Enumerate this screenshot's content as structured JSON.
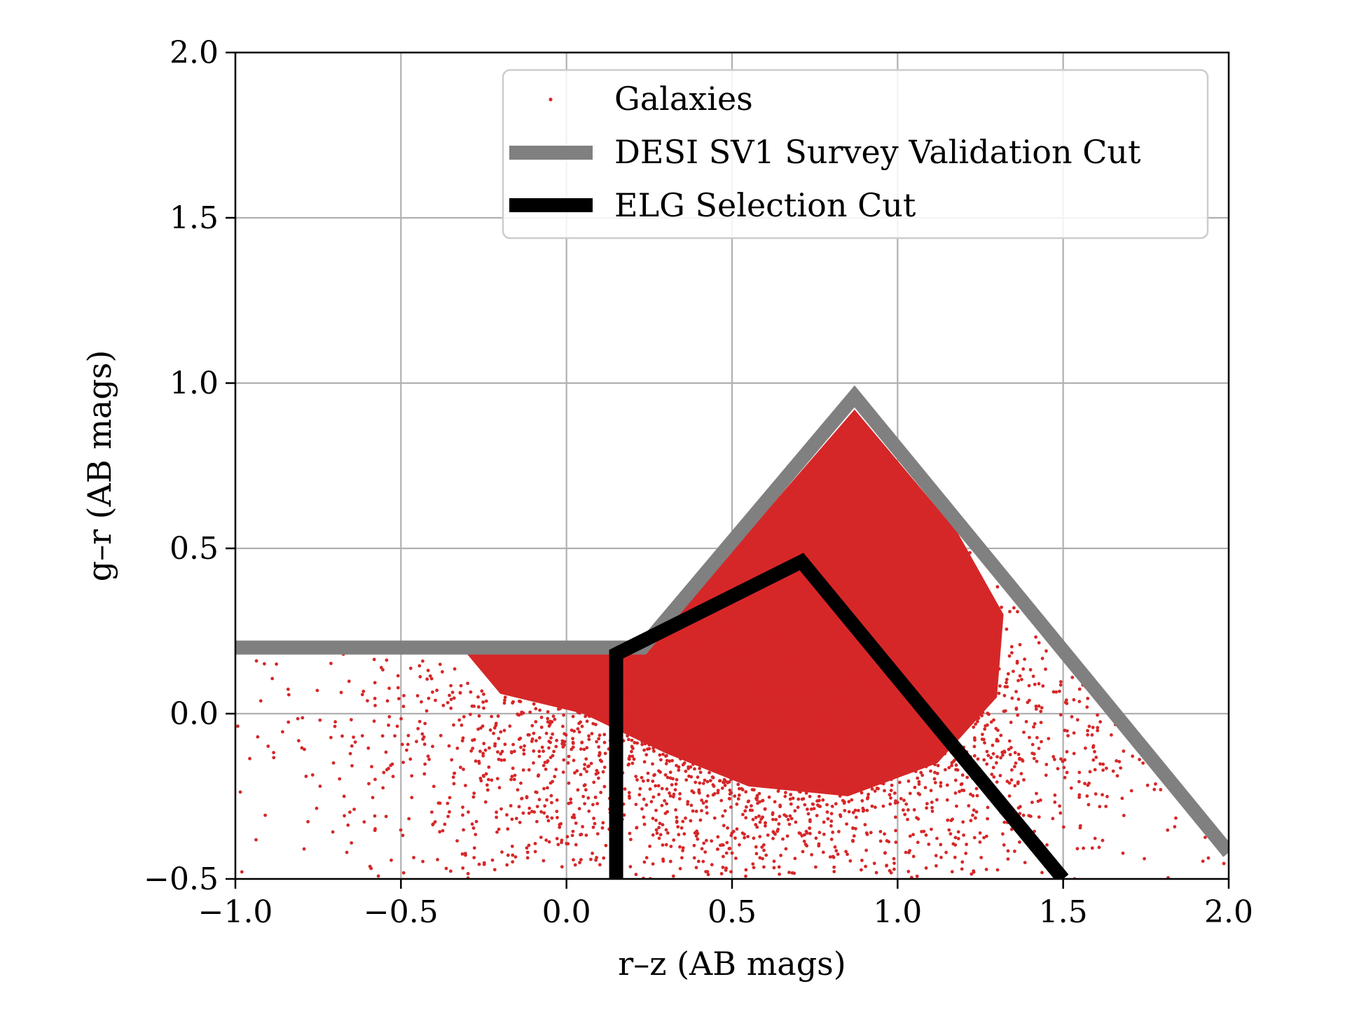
{
  "chart_data": {
    "type": "scatter",
    "title": "",
    "xlabel": "r–z (AB mags)",
    "ylabel": "g–r (AB mags)",
    "xlim": [
      -1.0,
      2.0
    ],
    "ylim": [
      -0.5,
      2.0
    ],
    "grid": true,
    "x_ticks": [
      -1.0,
      -0.5,
      0.0,
      0.5,
      1.0,
      1.5,
      2.0
    ],
    "x_tick_labels": [
      "−1.0",
      "−0.5",
      "0.0",
      "0.5",
      "1.0",
      "1.5",
      "2.0"
    ],
    "y_ticks": [
      -0.5,
      0.0,
      0.5,
      1.0,
      1.5,
      2.0
    ],
    "y_tick_labels": [
      "−0.5",
      "0.0",
      "0.5",
      "1.0",
      "1.5",
      "2.0"
    ],
    "legend_position": "top-right",
    "colors": {
      "galaxies": "#d62728",
      "sv1_cut": "#808080",
      "elg_cut": "#000000",
      "grid": "#b0b0b0"
    },
    "series": [
      {
        "name": "Galaxies",
        "kind": "scatter",
        "description_region": "points filling the region below the SV1 cut",
        "dense_core_polygon": [
          [
            0.23,
            0.18
          ],
          [
            0.87,
            0.92
          ],
          [
            1.18,
            0.55
          ],
          [
            1.32,
            0.3
          ],
          [
            1.3,
            0.05
          ],
          [
            1.12,
            -0.15
          ],
          [
            0.85,
            -0.25
          ],
          [
            0.55,
            -0.22
          ],
          [
            0.3,
            -0.12
          ],
          [
            0.05,
            0.0
          ],
          [
            -0.2,
            0.06
          ],
          [
            -0.3,
            0.18
          ]
        ],
        "count_sampled": 3200
      },
      {
        "name": "DESI SV1 Survey Validation Cut",
        "kind": "line",
        "x": [
          -1.0,
          0.23,
          0.87,
          2.0
        ],
        "y": [
          0.2,
          0.2,
          0.96,
          -0.42
        ]
      },
      {
        "name": "ELG Selection Cut",
        "kind": "line",
        "x": [
          0.15,
          0.15,
          0.71,
          1.5
        ],
        "y": [
          -0.5,
          0.18,
          0.46,
          -0.5
        ]
      }
    ]
  }
}
